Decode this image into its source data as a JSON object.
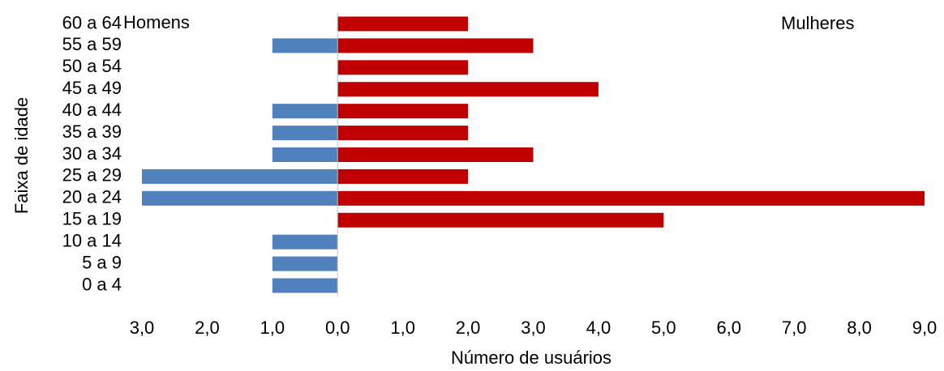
{
  "chart_data": {
    "type": "pyramid",
    "x_label": "Número de usuários",
    "y_label": "Faixa de idade",
    "categories": [
      "0 a 4",
      "5 a 9",
      "10 a 14",
      "15 a 19",
      "20 a 24",
      "25 a 29",
      "30 a 34",
      "35 a 39",
      "40 a 44",
      "45 a 49",
      "50 a 54",
      "55 a 59",
      "60 a 64"
    ],
    "series": [
      {
        "name": "Homens",
        "color": "#4f81bd",
        "side": "left",
        "values": [
          1,
          1,
          1,
          0,
          3,
          3,
          1,
          1,
          1,
          0,
          0,
          1,
          0
        ]
      },
      {
        "name": "Mulheres",
        "color": "#c00000",
        "side": "right",
        "values": [
          0,
          0,
          0,
          5,
          9,
          2,
          3,
          2,
          2,
          4,
          2,
          3,
          2
        ]
      }
    ],
    "xlim": [
      -3,
      9
    ],
    "xticks": [
      {
        "value": -3,
        "label": "3,0"
      },
      {
        "value": -2,
        "label": "2,0"
      },
      {
        "value": -1,
        "label": "1,0"
      },
      {
        "value": 0,
        "label": "0,0"
      },
      {
        "value": 1,
        "label": "1,0"
      },
      {
        "value": 2,
        "label": "2,0"
      },
      {
        "value": 3,
        "label": "3,0"
      },
      {
        "value": 4,
        "label": "4,0"
      },
      {
        "value": 5,
        "label": "5,0"
      },
      {
        "value": 6,
        "label": "6,0"
      },
      {
        "value": 7,
        "label": "7,0"
      },
      {
        "value": 8,
        "label": "8,0"
      },
      {
        "value": 9,
        "label": "9,0"
      }
    ]
  }
}
